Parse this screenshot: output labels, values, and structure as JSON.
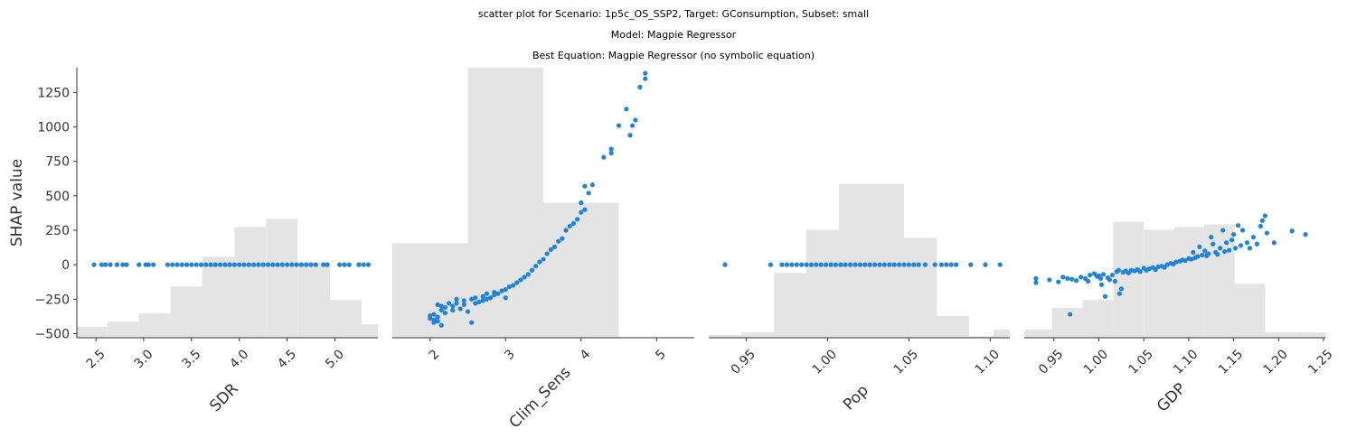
{
  "titles": {
    "line1": "scatter plot for Scenario: 1p5c_OS_SSP2, Target: GConsumption, Subset: small",
    "line2": "Model: Magpie Regressor",
    "line3": "Best Equation: Magpie Regressor (no symbolic equation)"
  },
  "colors": {
    "points": "#1f83d9",
    "histogram": "#e4e4e4",
    "axis": "#333333"
  },
  "chart_data": [
    {
      "type": "scatter",
      "xlabel": "SDR",
      "ylabel": "SHAP value",
      "xlim": [
        2.3,
        5.45
      ],
      "ylim": [
        -530,
        1430
      ],
      "xticks": [
        2.5,
        3.0,
        3.5,
        4.0,
        4.5,
        5.0
      ],
      "xtick_labels": [
        "2.5",
        "3.0",
        "3.5",
        "4.0",
        "4.5",
        "5.0"
      ],
      "yticks": [
        -500,
        -250,
        0,
        250,
        500,
        750,
        1000,
        1250
      ],
      "ytick_labels": [
        "−500",
        "−250",
        "0",
        "250",
        "500",
        "750",
        "1000",
        "1250"
      ],
      "histogram": [
        {
          "x0": 2.3,
          "x1": 2.62,
          "level": 0.04
        },
        {
          "x0": 2.62,
          "x1": 2.95,
          "level": 0.06
        },
        {
          "x0": 2.95,
          "x1": 3.28,
          "level": 0.09
        },
        {
          "x0": 3.28,
          "x1": 3.61,
          "level": 0.19
        },
        {
          "x0": 3.61,
          "x1": 3.95,
          "level": 0.3
        },
        {
          "x0": 3.95,
          "x1": 4.28,
          "level": 0.41
        },
        {
          "x0": 4.28,
          "x1": 4.61,
          "level": 0.44
        },
        {
          "x0": 4.61,
          "x1": 4.95,
          "level": 0.28
        },
        {
          "x0": 4.95,
          "x1": 5.28,
          "level": 0.14
        },
        {
          "x0": 5.28,
          "x1": 5.45,
          "level": 0.05
        }
      ],
      "points": [
        [
          2.48,
          0
        ],
        [
          2.56,
          0
        ],
        [
          2.6,
          0
        ],
        [
          2.65,
          0
        ],
        [
          2.72,
          0
        ],
        [
          2.78,
          0
        ],
        [
          2.82,
          0
        ],
        [
          2.95,
          0
        ],
        [
          3.02,
          0
        ],
        [
          3.05,
          0
        ],
        [
          3.1,
          0
        ],
        [
          3.25,
          0
        ],
        [
          3.3,
          0
        ],
        [
          3.35,
          0
        ],
        [
          3.4,
          0
        ],
        [
          3.45,
          0
        ],
        [
          3.5,
          0
        ],
        [
          3.55,
          0
        ],
        [
          3.6,
          0
        ],
        [
          3.65,
          0
        ],
        [
          3.7,
          0
        ],
        [
          3.75,
          0
        ],
        [
          3.8,
          0
        ],
        [
          3.85,
          0
        ],
        [
          3.9,
          0
        ],
        [
          3.95,
          0
        ],
        [
          4.0,
          0
        ],
        [
          4.05,
          0
        ],
        [
          4.1,
          0
        ],
        [
          4.15,
          0
        ],
        [
          4.2,
          0
        ],
        [
          4.25,
          0
        ],
        [
          4.3,
          0
        ],
        [
          4.35,
          0
        ],
        [
          4.4,
          0
        ],
        [
          4.45,
          0
        ],
        [
          4.5,
          0
        ],
        [
          4.55,
          0
        ],
        [
          4.6,
          0
        ],
        [
          4.65,
          0
        ],
        [
          4.7,
          0
        ],
        [
          4.75,
          0
        ],
        [
          4.8,
          0
        ],
        [
          4.88,
          0
        ],
        [
          4.92,
          0
        ],
        [
          5.05,
          0
        ],
        [
          5.1,
          0
        ],
        [
          5.15,
          0
        ],
        [
          5.25,
          0
        ],
        [
          5.3,
          0
        ],
        [
          5.35,
          0
        ]
      ]
    },
    {
      "type": "scatter",
      "xlabel": "Clim_Sens",
      "ylabel": "",
      "xlim": [
        1.5,
        5.5
      ],
      "ylim": [
        -530,
        1430
      ],
      "xticks": [
        2,
        3,
        4,
        5
      ],
      "xtick_labels": [
        "2",
        "3",
        "4",
        "5"
      ],
      "yticks": [],
      "ytick_labels": [],
      "histogram": [
        {
          "x0": 1.5,
          "x1": 2.5,
          "level": 0.35
        },
        {
          "x0": 2.5,
          "x1": 3.5,
          "level": 1.0
        },
        {
          "x0": 3.5,
          "x1": 4.5,
          "level": 0.5
        }
      ],
      "points": [
        [
          2.0,
          -390
        ],
        [
          2.0,
          -370
        ],
        [
          2.05,
          -420
        ],
        [
          2.05,
          -400
        ],
        [
          2.05,
          -360
        ],
        [
          2.1,
          -290
        ],
        [
          2.1,
          -380
        ],
        [
          2.1,
          -410
        ],
        [
          2.15,
          -440
        ],
        [
          2.15,
          -330
        ],
        [
          2.15,
          -300
        ],
        [
          2.2,
          -350
        ],
        [
          2.2,
          -310
        ],
        [
          2.25,
          -280
        ],
        [
          2.3,
          -330
        ],
        [
          2.3,
          -300
        ],
        [
          2.35,
          -280
        ],
        [
          2.35,
          -250
        ],
        [
          2.4,
          -320
        ],
        [
          2.45,
          -290
        ],
        [
          2.45,
          -260
        ],
        [
          2.5,
          -340
        ],
        [
          2.55,
          -420
        ],
        [
          2.55,
          -250
        ],
        [
          2.6,
          -280
        ],
        [
          2.6,
          -240
        ],
        [
          2.65,
          -270
        ],
        [
          2.7,
          -260
        ],
        [
          2.7,
          -230
        ],
        [
          2.75,
          -250
        ],
        [
          2.75,
          -210
        ],
        [
          2.8,
          -240
        ],
        [
          2.85,
          -220
        ],
        [
          2.85,
          -200
        ],
        [
          2.9,
          -210
        ],
        [
          2.95,
          -190
        ],
        [
          3.0,
          -180
        ],
        [
          3.0,
          -240
        ],
        [
          3.05,
          -160
        ],
        [
          3.1,
          -150
        ],
        [
          3.15,
          -130
        ],
        [
          3.2,
          -110
        ],
        [
          3.25,
          -90
        ],
        [
          3.3,
          -70
        ],
        [
          3.35,
          -40
        ],
        [
          3.4,
          -10
        ],
        [
          3.45,
          20
        ],
        [
          3.5,
          40
        ],
        [
          3.55,
          80
        ],
        [
          3.6,
          110
        ],
        [
          3.65,
          130
        ],
        [
          3.7,
          170
        ],
        [
          3.75,
          190
        ],
        [
          3.8,
          250
        ],
        [
          3.85,
          280
        ],
        [
          3.9,
          300
        ],
        [
          3.95,
          330
        ],
        [
          4.0,
          380
        ],
        [
          4.0,
          450
        ],
        [
          4.05,
          400
        ],
        [
          4.05,
          570
        ],
        [
          4.1,
          520
        ],
        [
          4.15,
          580
        ],
        [
          4.3,
          780
        ],
        [
          4.4,
          840
        ],
        [
          4.4,
          810
        ],
        [
          4.5,
          1010
        ],
        [
          4.6,
          1130
        ],
        [
          4.65,
          940
        ],
        [
          4.68,
          1010
        ],
        [
          4.72,
          1050
        ],
        [
          4.78,
          1290
        ],
        [
          4.85,
          1350
        ],
        [
          4.85,
          1390
        ]
      ]
    },
    {
      "type": "scatter",
      "xlabel": "Pop",
      "ylabel": "",
      "xlim": [
        0.927,
        1.112
      ],
      "ylim": [
        -530,
        1430
      ],
      "xticks": [
        0.95,
        1.0,
        1.05,
        1.1
      ],
      "xtick_labels": [
        "0.95",
        "1.00",
        "1.05",
        "1.10"
      ],
      "yticks": [],
      "ytick_labels": [],
      "histogram": [
        {
          "x0": 0.927,
          "x1": 0.947,
          "level": 0.01
        },
        {
          "x0": 0.947,
          "x1": 0.967,
          "level": 0.02
        },
        {
          "x0": 0.967,
          "x1": 0.987,
          "level": 0.24
        },
        {
          "x0": 0.987,
          "x1": 1.007,
          "level": 0.4
        },
        {
          "x0": 1.007,
          "x1": 1.027,
          "level": 0.57
        },
        {
          "x0": 1.027,
          "x1": 1.047,
          "level": 0.57
        },
        {
          "x0": 1.047,
          "x1": 1.067,
          "level": 0.37
        },
        {
          "x0": 1.067,
          "x1": 1.087,
          "level": 0.08
        },
        {
          "x0": 1.087,
          "x1": 1.102,
          "level": 0.005
        },
        {
          "x0": 1.102,
          "x1": 1.112,
          "level": 0.03
        }
      ],
      "points": [
        [
          0.937,
          0
        ],
        [
          0.965,
          0
        ],
        [
          0.972,
          0
        ],
        [
          0.975,
          0
        ],
        [
          0.978,
          0
        ],
        [
          0.981,
          0
        ],
        [
          0.984,
          0
        ],
        [
          0.987,
          0
        ],
        [
          0.99,
          0
        ],
        [
          0.993,
          0
        ],
        [
          0.996,
          0
        ],
        [
          0.999,
          0
        ],
        [
          1.002,
          0
        ],
        [
          1.005,
          0
        ],
        [
          1.008,
          0
        ],
        [
          1.011,
          0
        ],
        [
          1.014,
          0
        ],
        [
          1.017,
          0
        ],
        [
          1.02,
          0
        ],
        [
          1.023,
          0
        ],
        [
          1.026,
          0
        ],
        [
          1.029,
          0
        ],
        [
          1.032,
          0
        ],
        [
          1.035,
          0
        ],
        [
          1.038,
          0
        ],
        [
          1.041,
          0
        ],
        [
          1.044,
          0
        ],
        [
          1.047,
          0
        ],
        [
          1.05,
          0
        ],
        [
          1.053,
          0
        ],
        [
          1.056,
          0
        ],
        [
          1.06,
          0
        ],
        [
          1.066,
          0
        ],
        [
          1.07,
          0
        ],
        [
          1.073,
          0
        ],
        [
          1.076,
          0
        ],
        [
          1.079,
          0
        ],
        [
          1.088,
          0
        ],
        [
          1.097,
          0
        ],
        [
          1.106,
          0
        ]
      ]
    },
    {
      "type": "scatter",
      "xlabel": "GDP",
      "ylabel": "",
      "xlim": [
        0.917,
        1.252
      ],
      "ylim": [
        -530,
        1430
      ],
      "xticks": [
        0.95,
        1.0,
        1.05,
        1.1,
        1.15,
        1.2,
        1.25
      ],
      "xtick_labels": [
        "0.95",
        "1.00",
        "1.05",
        "1.10",
        "1.15",
        "1.20",
        "1.25"
      ],
      "yticks": [],
      "ytick_labels": [],
      "histogram": [
        {
          "x0": 0.917,
          "x1": 0.948,
          "level": 0.03
        },
        {
          "x0": 0.948,
          "x1": 0.982,
          "level": 0.11
        },
        {
          "x0": 0.982,
          "x1": 1.016,
          "level": 0.14
        },
        {
          "x0": 1.016,
          "x1": 1.05,
          "level": 0.43
        },
        {
          "x0": 1.05,
          "x1": 1.084,
          "level": 0.4
        },
        {
          "x0": 1.084,
          "x1": 1.117,
          "level": 0.41
        },
        {
          "x0": 1.117,
          "x1": 1.151,
          "level": 0.42
        },
        {
          "x0": 1.151,
          "x1": 1.185,
          "level": 0.2
        },
        {
          "x0": 1.185,
          "x1": 1.218,
          "level": 0.02
        },
        {
          "x0": 1.218,
          "x1": 1.252,
          "level": 0.02
        }
      ],
      "points": [
        [
          0.93,
          -130
        ],
        [
          0.93,
          -100
        ],
        [
          0.945,
          -110
        ],
        [
          0.955,
          -125
        ],
        [
          0.96,
          -90
        ],
        [
          0.965,
          -100
        ],
        [
          0.968,
          -360
        ],
        [
          0.97,
          -105
        ],
        [
          0.975,
          -115
        ],
        [
          0.98,
          -90
        ],
        [
          0.985,
          -100
        ],
        [
          0.988,
          -120
        ],
        [
          0.99,
          -75
        ],
        [
          0.995,
          -65
        ],
        [
          0.998,
          -85
        ],
        [
          1.0,
          -80
        ],
        [
          1.002,
          -100
        ],
        [
          1.003,
          -145
        ],
        [
          1.005,
          -70
        ],
        [
          1.007,
          -230
        ],
        [
          1.01,
          -95
        ],
        [
          1.012,
          -110
        ],
        [
          1.015,
          -75
        ],
        [
          1.018,
          -120
        ],
        [
          1.02,
          -50
        ],
        [
          1.022,
          -40
        ],
        [
          1.023,
          -210
        ],
        [
          1.025,
          -175
        ],
        [
          1.027,
          -55
        ],
        [
          1.03,
          -45
        ],
        [
          1.033,
          -60
        ],
        [
          1.036,
          -40
        ],
        [
          1.04,
          -45
        ],
        [
          1.043,
          -35
        ],
        [
          1.046,
          -50
        ],
        [
          1.05,
          -25
        ],
        [
          1.053,
          -40
        ],
        [
          1.056,
          -30
        ],
        [
          1.06,
          -20
        ],
        [
          1.063,
          -35
        ],
        [
          1.066,
          -15
        ],
        [
          1.07,
          -10
        ],
        [
          1.073,
          -20
        ],
        [
          1.076,
          0
        ],
        [
          1.08,
          10
        ],
        [
          1.083,
          5
        ],
        [
          1.086,
          20
        ],
        [
          1.09,
          25
        ],
        [
          1.093,
          35
        ],
        [
          1.096,
          30
        ],
        [
          1.1,
          45
        ],
        [
          1.103,
          40
        ],
        [
          1.105,
          90
        ],
        [
          1.107,
          50
        ],
        [
          1.11,
          60
        ],
        [
          1.112,
          130
        ],
        [
          1.115,
          70
        ],
        [
          1.118,
          100
        ],
        [
          1.12,
          65
        ],
        [
          1.122,
          80
        ],
        [
          1.125,
          200
        ],
        [
          1.127,
          150
        ],
        [
          1.13,
          90
        ],
        [
          1.132,
          75
        ],
        [
          1.135,
          120
        ],
        [
          1.138,
          250
        ],
        [
          1.14,
          95
        ],
        [
          1.142,
          160
        ],
        [
          1.145,
          105
        ],
        [
          1.148,
          180
        ],
        [
          1.15,
          220
        ],
        [
          1.152,
          120
        ],
        [
          1.155,
          285
        ],
        [
          1.158,
          140
        ],
        [
          1.16,
          250
        ],
        [
          1.165,
          160
        ],
        [
          1.168,
          120
        ],
        [
          1.172,
          200
        ],
        [
          1.176,
          150
        ],
        [
          1.18,
          280
        ],
        [
          1.182,
          320
        ],
        [
          1.185,
          355
        ],
        [
          1.187,
          230
        ],
        [
          1.195,
          160
        ],
        [
          1.215,
          245
        ],
        [
          1.23,
          220
        ]
      ]
    }
  ]
}
